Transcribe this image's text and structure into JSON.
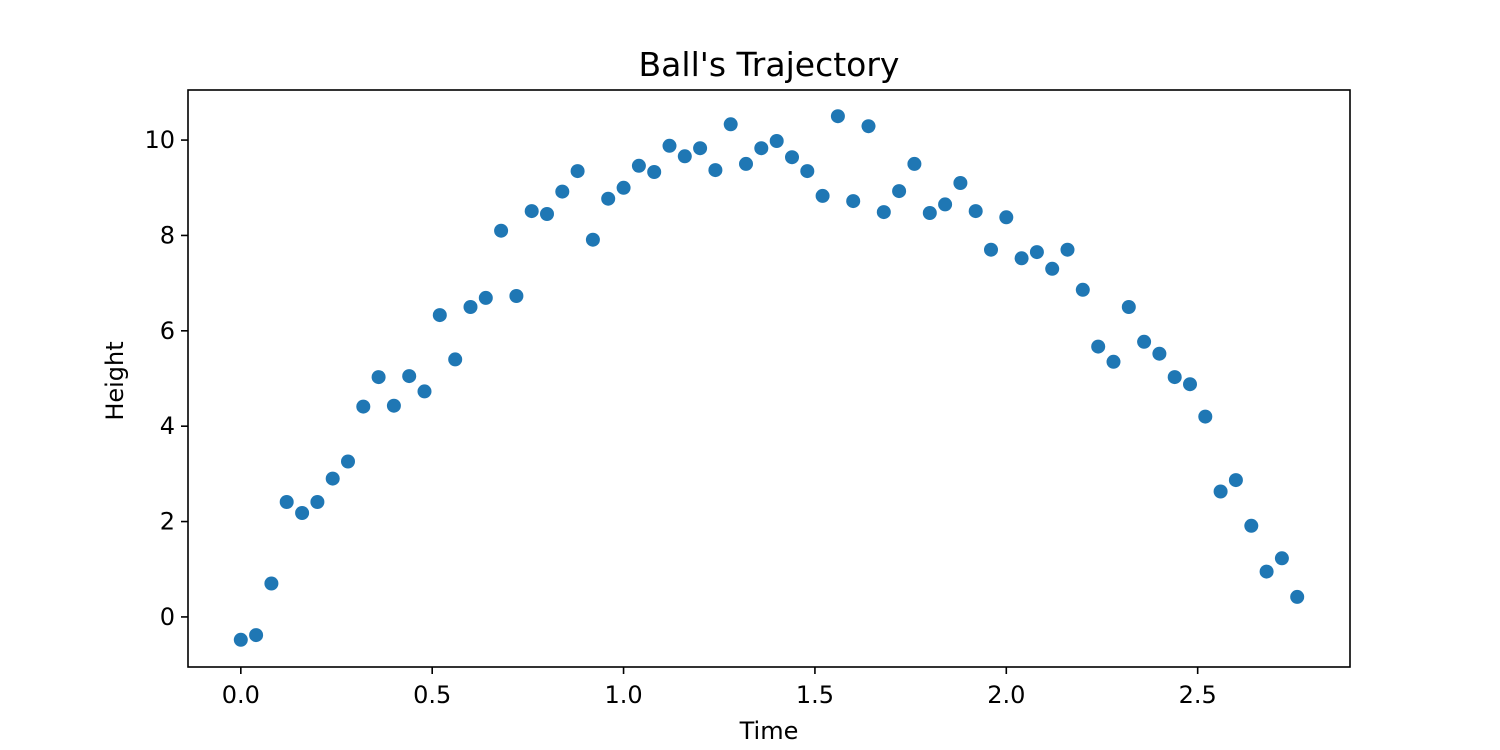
{
  "chart_data": {
    "type": "scatter",
    "title": "Ball's Trajectory",
    "xlabel": "Time",
    "ylabel": "Height",
    "xlim": [
      -0.138,
      2.898
    ],
    "ylim": [
      -1.05,
      11.05
    ],
    "xticks": [
      0.0,
      0.5,
      1.0,
      1.5,
      2.0,
      2.5
    ],
    "xtick_labels": [
      "0.0",
      "0.5",
      "1.0",
      "1.5",
      "2.0",
      "2.5"
    ],
    "yticks": [
      0,
      2,
      4,
      6,
      8,
      10
    ],
    "ytick_labels": [
      "0",
      "2",
      "4",
      "6",
      "8",
      "10"
    ],
    "grid": false,
    "legend": "none",
    "color": "#1f77b4",
    "series": [
      {
        "x": [
          0.0,
          0.04,
          0.08,
          0.12,
          0.16,
          0.2,
          0.24,
          0.28,
          0.32,
          0.36,
          0.4,
          0.44,
          0.48,
          0.52,
          0.56,
          0.6,
          0.64,
          0.68,
          0.72,
          0.76,
          0.8,
          0.84,
          0.88,
          0.92,
          0.96,
          1.0,
          1.04,
          1.08,
          1.12,
          1.16,
          1.2,
          1.24,
          1.28,
          1.32,
          1.36,
          1.4,
          1.44,
          1.48,
          1.52,
          1.56,
          1.6,
          1.64,
          1.68,
          1.72,
          1.76,
          1.8,
          1.84,
          1.88,
          1.92,
          1.96,
          2.0,
          2.04,
          2.08,
          2.12,
          2.16,
          2.2,
          2.24,
          2.28,
          2.32,
          2.36,
          2.4,
          2.44,
          2.48,
          2.52,
          2.56,
          2.6,
          2.64,
          2.68,
          2.72,
          2.76
        ],
        "y": [
          -0.48,
          -0.38,
          0.7,
          2.41,
          2.18,
          2.41,
          2.9,
          3.26,
          4.41,
          5.03,
          4.43,
          5.05,
          4.73,
          6.33,
          5.4,
          6.5,
          6.69,
          8.1,
          6.73,
          8.51,
          8.45,
          8.92,
          9.35,
          7.91,
          8.77,
          9.0,
          9.46,
          9.33,
          9.88,
          9.66,
          9.83,
          9.37,
          10.33,
          9.5,
          9.83,
          9.98,
          9.64,
          9.35,
          8.83,
          10.5,
          8.72,
          10.29,
          8.49,
          8.93,
          9.5,
          8.47,
          8.65,
          9.1,
          8.51,
          7.7,
          8.38,
          7.52,
          7.65,
          7.3,
          7.7,
          6.86,
          5.67,
          5.35,
          6.5,
          5.77,
          5.52,
          5.03,
          4.88,
          4.2,
          2.63,
          2.87,
          1.91,
          0.95,
          1.23,
          0.42
        ]
      }
    ]
  }
}
